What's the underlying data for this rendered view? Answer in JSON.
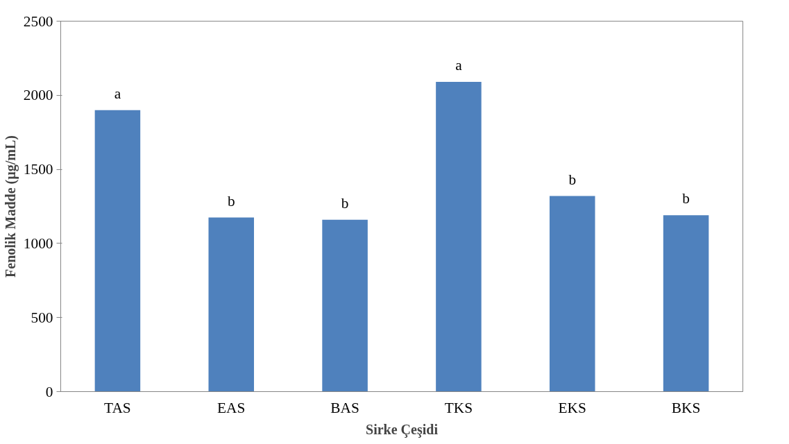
{
  "chart_data": {
    "type": "bar",
    "xlabel": "Sirke Çeşidi",
    "ylabel": "Fenolik Madde (µg/mL)",
    "categories": [
      "TAS",
      "EAS",
      "BAS",
      "TKS",
      "EKS",
      "BKS"
    ],
    "values": [
      1900,
      1175,
      1160,
      2090,
      1320,
      1190
    ],
    "color": "#4f81bd",
    "ylim": [
      0,
      2500
    ],
    "yticks": [
      0,
      500,
      1000,
      1500,
      2000,
      2500
    ],
    "grid": false,
    "annotations": [
      {
        "text": "a",
        "x": "TAS",
        "y": 1900
      },
      {
        "text": "b",
        "x": "EAS",
        "y": 1175
      },
      {
        "text": "b",
        "x": "BAS",
        "y": 1160
      },
      {
        "text": "a",
        "x": "TKS",
        "y": 2090
      },
      {
        "text": "b",
        "x": "EKS",
        "y": 1320
      },
      {
        "text": "b",
        "x": "BKS",
        "y": 1190
      }
    ]
  }
}
